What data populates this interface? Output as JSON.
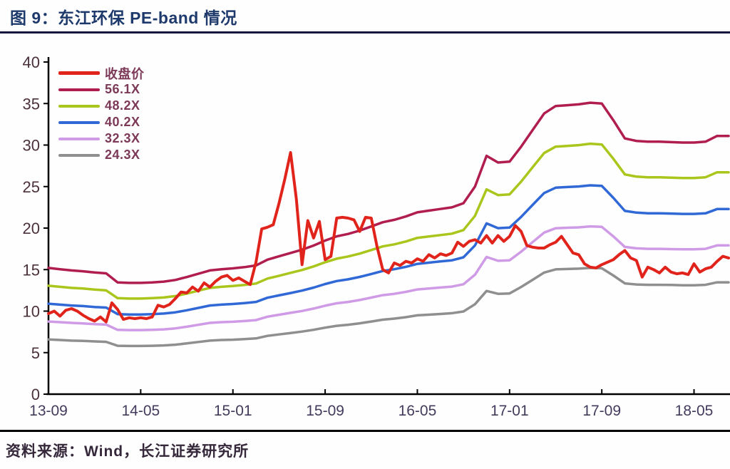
{
  "header": {
    "title": "图 9：东江环保 PE-band 情况"
  },
  "footer": {
    "source": "资料来源：Wind，长江证券研究所"
  },
  "colors": {
    "title_text": "#1e3a6c",
    "title_rule": "#14143c",
    "axis_line": "#000000",
    "y_tick_text": "#4a313c",
    "x_tick_text": "#433b5c",
    "legend_text": "#7c3a58",
    "bottom_rule": "#000000",
    "source_text": "#35283a",
    "background": "#fffefe"
  },
  "chart_data": {
    "type": "line",
    "title": "东江环保 PE-band 情况",
    "xlabel": "",
    "ylabel": "",
    "grid": false,
    "legend_position": "top-left",
    "y_axis": {
      "min": 0,
      "max": 40,
      "tick_step": 5,
      "ticks": [
        0,
        5,
        10,
        15,
        20,
        25,
        30,
        35,
        40
      ]
    },
    "x_axis": {
      "unit": "year-month",
      "months_span": 59,
      "ticks": [
        {
          "month": 0,
          "label": "13-09"
        },
        {
          "month": 8,
          "label": "14-05"
        },
        {
          "month": 16,
          "label": "15-01"
        },
        {
          "month": 24,
          "label": "15-09"
        },
        {
          "month": 32,
          "label": "16-05"
        },
        {
          "month": 40,
          "label": "17-01"
        },
        {
          "month": 48,
          "label": "17-09"
        },
        {
          "month": 56,
          "label": "18-05"
        }
      ]
    },
    "series": [
      {
        "name": "收盘价",
        "color": "#e0241b",
        "width": 4,
        "z": 10,
        "x_step_months": 0.5,
        "values": [
          9.7,
          10.0,
          9.4,
          10.1,
          10.3,
          10.0,
          9.5,
          9.1,
          8.8,
          9.3,
          8.7,
          11.0,
          10.2,
          9.0,
          9.2,
          9.1,
          9.2,
          9.1,
          9.3,
          10.7,
          10.5,
          10.8,
          11.5,
          12.3,
          12.2,
          12.9,
          12.4,
          13.4,
          12.9,
          13.6,
          14.1,
          14.3,
          13.7,
          14.0,
          13.6,
          13.2,
          15.9,
          19.9,
          20.1,
          20.4,
          23.0,
          25.9,
          29.1,
          23.5,
          15.6,
          20.9,
          18.8,
          20.8,
          16.2,
          16.6,
          21.2,
          21.3,
          21.2,
          21.0,
          19.6,
          21.3,
          21.2,
          17.8,
          15.0,
          14.6,
          15.8,
          15.5,
          16.0,
          15.8,
          16.3,
          16.0,
          16.8,
          16.4,
          16.9,
          16.7,
          17.0,
          18.3,
          17.8,
          18.4,
          18.6,
          18.2,
          19.1,
          18.2,
          19.1,
          18.4,
          19.0,
          20.3,
          19.6,
          17.9,
          17.7,
          17.6,
          17.6,
          18.0,
          18.3,
          19.0,
          18.0,
          17.0,
          16.8,
          15.7,
          15.3,
          15.2,
          15.6,
          15.9,
          16.2,
          16.8,
          17.3,
          16.4,
          16.1,
          14.1,
          15.3,
          15.0,
          14.6,
          15.3,
          14.7,
          14.5,
          14.6,
          14.4,
          15.7,
          14.7,
          15.1,
          15.3,
          16.0,
          16.6,
          16.4
        ]
      },
      {
        "name": "56.1X",
        "color": "#b01e50",
        "width": 3.5,
        "z": 5,
        "x_step_months": 1,
        "values": [
          15.2,
          15.05,
          14.9,
          14.8,
          14.65,
          14.55,
          13.45,
          13.4,
          13.4,
          13.45,
          13.55,
          13.75,
          14.1,
          14.5,
          14.9,
          15.05,
          15.15,
          15.3,
          15.5,
          16.2,
          16.6,
          17.0,
          17.4,
          17.9,
          18.5,
          19.0,
          19.3,
          19.7,
          20.2,
          20.7,
          21.0,
          21.4,
          21.9,
          22.1,
          22.3,
          22.5,
          23.0,
          25.0,
          28.7,
          27.9,
          28.0,
          29.8,
          31.8,
          33.8,
          34.7,
          34.8,
          34.9,
          35.1,
          35.0,
          33.0,
          30.8,
          30.5,
          30.4,
          30.4,
          30.35,
          30.3,
          30.3,
          30.4,
          31.1,
          31.1
        ]
      },
      {
        "name": "48.2X",
        "color": "#a9c61c",
        "width": 3.5,
        "z": 4,
        "x_step_months": 1,
        "values": [
          13.06,
          12.93,
          12.8,
          12.72,
          12.59,
          12.5,
          11.56,
          11.51,
          11.51,
          11.56,
          11.64,
          11.81,
          12.11,
          12.46,
          12.8,
          12.93,
          13.02,
          13.15,
          13.32,
          13.92,
          14.26,
          14.61,
          14.95,
          15.38,
          15.89,
          16.32,
          16.58,
          16.93,
          17.36,
          17.79,
          18.04,
          18.39,
          18.82,
          18.99,
          19.16,
          19.33,
          19.76,
          21.48,
          24.66,
          23.97,
          24.06,
          25.6,
          27.32,
          29.04,
          29.81,
          29.9,
          29.99,
          30.16,
          30.07,
          28.35,
          26.46,
          26.2,
          26.12,
          26.12,
          26.08,
          26.03,
          26.03,
          26.12,
          26.72,
          26.72
        ]
      },
      {
        "name": "40.2X",
        "color": "#3069d6",
        "width": 3.5,
        "z": 3,
        "x_step_months": 1,
        "values": [
          10.89,
          10.78,
          10.68,
          10.61,
          10.5,
          10.43,
          9.64,
          9.6,
          9.6,
          9.64,
          9.71,
          9.85,
          10.1,
          10.39,
          10.68,
          10.78,
          10.86,
          10.96,
          11.11,
          11.61,
          11.9,
          12.18,
          12.47,
          12.83,
          13.26,
          13.62,
          13.83,
          14.12,
          14.47,
          14.83,
          15.05,
          15.33,
          15.69,
          15.84,
          15.98,
          16.12,
          16.48,
          17.91,
          20.57,
          19.99,
          20.06,
          21.35,
          22.79,
          24.22,
          24.87,
          24.94,
          25.01,
          25.15,
          25.08,
          23.65,
          22.07,
          21.86,
          21.78,
          21.78,
          21.75,
          21.71,
          21.71,
          21.78,
          22.29,
          22.29
        ]
      },
      {
        "name": "32.3X",
        "color": "#cf9be6",
        "width": 3.5,
        "z": 2,
        "x_step_months": 1,
        "values": [
          8.75,
          8.67,
          8.58,
          8.52,
          8.43,
          8.38,
          7.74,
          7.72,
          7.72,
          7.74,
          7.8,
          7.92,
          8.12,
          8.35,
          8.58,
          8.67,
          8.72,
          8.81,
          8.92,
          9.33,
          9.56,
          9.79,
          10.02,
          10.31,
          10.65,
          10.94,
          11.11,
          11.34,
          11.63,
          11.92,
          12.09,
          12.32,
          12.61,
          12.72,
          12.84,
          12.95,
          13.24,
          14.39,
          16.52,
          16.06,
          16.12,
          17.16,
          18.31,
          19.46,
          19.98,
          20.04,
          20.09,
          20.21,
          20.15,
          19.0,
          17.73,
          17.56,
          17.5,
          17.5,
          17.47,
          17.45,
          17.45,
          17.5,
          17.91,
          17.91
        ]
      },
      {
        "name": "24.3X",
        "color": "#8f8f8f",
        "width": 3.5,
        "z": 1,
        "x_step_months": 1,
        "values": [
          6.58,
          6.52,
          6.45,
          6.41,
          6.35,
          6.3,
          5.83,
          5.8,
          5.8,
          5.83,
          5.87,
          5.96,
          6.11,
          6.28,
          6.45,
          6.52,
          6.56,
          6.63,
          6.71,
          7.02,
          7.19,
          7.36,
          7.54,
          7.75,
          8.01,
          8.23,
          8.36,
          8.53,
          8.75,
          8.97,
          9.1,
          9.27,
          9.49,
          9.57,
          9.66,
          9.75,
          9.96,
          10.83,
          12.43,
          12.09,
          12.13,
          12.91,
          13.77,
          14.64,
          15.03,
          15.07,
          15.12,
          15.2,
          15.16,
          14.29,
          13.34,
          13.21,
          13.17,
          13.17,
          13.15,
          13.12,
          13.12,
          13.17,
          13.47,
          13.47
        ]
      }
    ]
  }
}
